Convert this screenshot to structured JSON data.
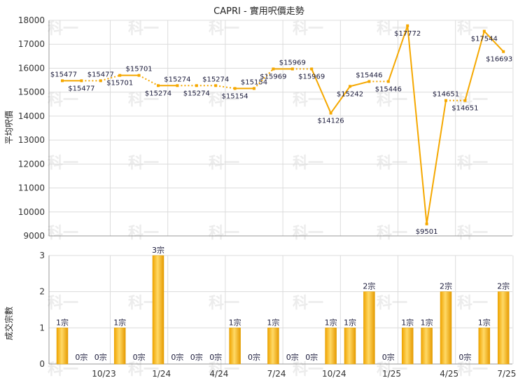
{
  "chart_data": [
    {
      "type": "line",
      "title": "CAPRI - 實用呎價走勢",
      "ylabel": "平均呎價",
      "ylim": [
        9000,
        18000
      ],
      "yticks": [
        9000,
        10000,
        11000,
        12000,
        13000,
        14000,
        15000,
        16000,
        17000,
        18000
      ],
      "grid": true,
      "series": [
        {
          "color": "#f5a800",
          "values": [
            15477,
            15477,
            15477,
            15701,
            15701,
            15274,
            15274,
            15274,
            15274,
            15154,
            15154,
            15969,
            15969,
            15969,
            14126,
            15242,
            15446,
            15446,
            17772,
            9501,
            14651,
            14651,
            17544,
            16693
          ],
          "labels": [
            "$15477",
            "$15477",
            "$15477",
            "$15701",
            "$15701",
            "$15274",
            "$15274",
            "$15274",
            "$15274",
            "$15154",
            "$15154",
            "$15969",
            "$15969",
            "$15969",
            "$14126",
            "$15242",
            "$15446",
            "$15446",
            "$17772",
            "$9501",
            "$14651",
            "$14651",
            "$17544",
            "$16693"
          ],
          "dashed_segments": [
            1,
            2,
            4,
            6,
            7,
            8,
            10,
            12,
            16,
            20
          ]
        }
      ]
    },
    {
      "type": "bar",
      "ylabel": "成交宗數",
      "ylim": [
        0,
        3
      ],
      "yticks": [
        0,
        1,
        2,
        3
      ],
      "grid": true,
      "series": [
        {
          "color": "#f5a800",
          "values": [
            1,
            0,
            0,
            1,
            0,
            3,
            0,
            0,
            0,
            1,
            0,
            1,
            0,
            0,
            1,
            1,
            2,
            0,
            1,
            1,
            2,
            0,
            1,
            2
          ],
          "labels": [
            "1宗",
            "0宗",
            "0宗",
            "1宗",
            "0宗",
            "3宗",
            "0宗",
            "0宗",
            "0宗",
            "1宗",
            "0宗",
            "1宗",
            "0宗",
            "0宗",
            "1宗",
            "1宗",
            "2宗",
            "0宗",
            "1宗",
            "1宗",
            "2宗",
            "0宗",
            "1宗",
            "2宗"
          ]
        }
      ],
      "x_tick_labels": [
        "10/23",
        "1/24",
        "4/24",
        "7/24",
        "10/24",
        "1/25",
        "4/25",
        "7/25"
      ],
      "x_tick_index": [
        2,
        5,
        8,
        11,
        14,
        17,
        20,
        23
      ]
    }
  ],
  "watermark": "科一"
}
